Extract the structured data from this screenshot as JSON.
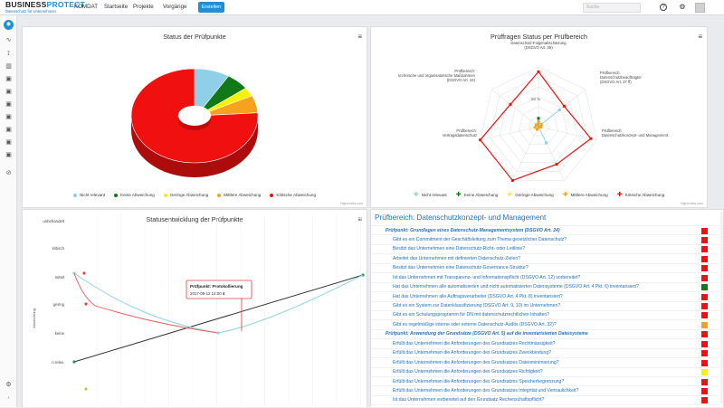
{
  "header": {
    "logo_main_a": "BUSINESS",
    "logo_main_b": "PROTECT",
    "logo_sub": "Datenschutz für Unternehmen",
    "nav": [
      "KOMDAT",
      "Startseite",
      "Projekte",
      "Vorgänge"
    ],
    "create_label": "Erstellen",
    "search_placeholder": "Suche",
    "help_icon": "?",
    "gear_icon": "⚙"
  },
  "sidebar": {
    "icons": [
      "home-icon",
      "activity-icon",
      "route-icon",
      "bar-chart-icon",
      "image-icon",
      "image-icon",
      "image-icon",
      "image-icon",
      "image-icon",
      "image-icon",
      "image-icon",
      "link-icon",
      "gear-icon",
      "chevron-icon"
    ]
  },
  "colors": {
    "nicht_relevant": "#8fcfe8",
    "keine": "#0f7a16",
    "geringe": "#f8f200",
    "mittlere": "#f7a21d",
    "kritische": "#f01010",
    "link": "#1e6fc0",
    "accent": "#1e90d6"
  },
  "legend_labels": [
    "Nicht relevant",
    "Keine Abweichung",
    "Geringe Abweichung",
    "Mittlere Abweichung",
    "Kritische Abweichung"
  ],
  "credits": "Highcharts.com",
  "chart_data": [
    {
      "type": "pie",
      "title": "Status der Prüfpunkte",
      "categories": [
        "Nicht relevant",
        "Keine Abweichung",
        "Geringe Abweichung",
        "Mittlere Abweichung",
        "Kritische Abweichung"
      ],
      "values": [
        9,
        6,
        3,
        6,
        76
      ],
      "colors": [
        "#8fcfe8",
        "#0f7a16",
        "#f8f200",
        "#f7a21d",
        "#f01010"
      ],
      "legend": "bottom"
    },
    {
      "type": "line",
      "subtype": "radar",
      "title": "Prüffragen Status per Prüfbereich",
      "categories": [
        "Prüfbereich: Datenschutz-Folgenabschätzung (DSGVO Art. 35)",
        "Prüfbereich: Datenschutzbeauftragter (DSGVO Art. 37 ff)",
        "Prüfbereich: Datenschutzkonzept- und Management",
        "Prüfbereich: Verarbeitung kritischer Daten (DSGVO Art. 8, 9, 10)",
        "Prüfbereich: Verfahrensverzeichnis (DSGVO Art. 30)",
        "Prüfbereich: Vertragsdatenschutz",
        "Prüfbereich: technische und organisatorische Maßnahmen (DSGVO Art. 24)"
      ],
      "axis_label": "50 %",
      "series": [
        {
          "name": "Nicht relevant",
          "values": [
            0,
            45,
            0,
            30,
            0,
            0,
            0
          ]
        },
        {
          "name": "Keine Abweichung",
          "values": [
            14,
            0,
            0,
            0,
            0,
            0,
            0
          ]
        },
        {
          "name": "Geringe Abweichung",
          "values": [
            0,
            0,
            0,
            0,
            0,
            0,
            0
          ]
        },
        {
          "name": "Mittlere Abweichung",
          "values": [
            8,
            6,
            4,
            0,
            5,
            6,
            5
          ]
        },
        {
          "name": "Kritische Abweichung",
          "values": [
            92,
            55,
            90,
            70,
            100,
            100,
            60
          ]
        }
      ],
      "legend": "bottom"
    },
    {
      "type": "line",
      "title": "Statusentwicklung der Prüfpunkte",
      "ylabel": "Abweichung",
      "categories": [
        "unbehandelt",
        "kritisch",
        "mittel",
        "gering",
        "keine",
        "n.relev."
      ],
      "tooltip": {
        "title": "Prüfpunkt: Protokollierung",
        "date": "2017-09-12 14:00",
        "value": "4"
      }
    }
  ],
  "audit": {
    "title": "Prüfbereich: Datenschutzkonzept- und Management",
    "rows": [
      {
        "kind": "sec",
        "text": "Prüfpunkt: Grundlagen eines Datenschutz-Managementsystem (DSGVO Art. 24)",
        "status": "kritische"
      },
      {
        "kind": "q",
        "text": "Gibt es ein Commitment der Geschäftsleitung zum Thema gesetzlicher Datenschutz?",
        "status": "kritische"
      },
      {
        "kind": "q",
        "text": "Besitzt das Unternehmen eine Datenschutz-Richt- oder Leitlinie?",
        "status": "kritische"
      },
      {
        "kind": "q",
        "text": "Arbeitet das Unternehmen mit definierten Datenschutz-Zielen?",
        "status": "kritische"
      },
      {
        "kind": "q",
        "text": "Besitzt das Unternehmen eine Datenschutz-Governance-Struktur?",
        "status": "kritische"
      },
      {
        "kind": "q",
        "text": "Ist das Unternehmen mit Transparenz- und Informationspflicht (DSGVO Art. 12) vorbereitet?",
        "status": "kritische"
      },
      {
        "kind": "q",
        "text": "Hat das Unternehmen alle automatisierten und nicht automatisierten Datensysteme (DSGVO Art. 4 Pkt. 6) inventarisiert?",
        "status": "keine"
      },
      {
        "kind": "q",
        "text": "Hat das Unternehmen alle Auftragsverarbeiter (DSGVO Art. 4 Pkt. 8) inventarisiert?",
        "status": "kritische"
      },
      {
        "kind": "q",
        "text": "Gibt es ein System zur Datenklassifizierung (DSGVO Art. 9, 10) im Unternehmen?",
        "status": "kritische"
      },
      {
        "kind": "q",
        "text": "Gibt es ein Schulungsprogramm für DN mit datenschutzrechtlichen Inhalten?",
        "status": "kritische"
      },
      {
        "kind": "q",
        "text": "Gibt es regelmäßige interne oder externe Datenschutz-Audits (DSGVO Art. 32)?",
        "status": "mittlere"
      },
      {
        "kind": "sec",
        "text": "Prüfpunkt: Anwendung der Grundsätze (DSGVO Art. 5) auf die inventarisierten Dateisysteme",
        "status": "kritische"
      },
      {
        "kind": "q",
        "text": "Erfüllt das Unternehmen die Anforderungen des Grundsatzes Rechtmässigkeit?",
        "status": "kritische"
      },
      {
        "kind": "q",
        "text": "Erfüllt das Unternehmen die Anforderungen des Grundsatzes Zweckbindung?",
        "status": "kritische"
      },
      {
        "kind": "q",
        "text": "Erfüllt das Unternehmen die Anforderungen des Grundsatzes Datenminimierung?",
        "status": "kritische"
      },
      {
        "kind": "q",
        "text": "Erfüllt das Unternehmen die Anforderungen des Grundsatzes Richtigkeit?",
        "status": "geringe"
      },
      {
        "kind": "q",
        "text": "Erfüllt das Unternehmen die Anforderungen des Grundsatzes Speicherbegrenzung?",
        "status": "kritische"
      },
      {
        "kind": "q",
        "text": "Erfüllt das Unternehmen die Anforderungen des Grundsatzes Integrität und Vertraulichkeit?",
        "status": "kritische"
      },
      {
        "kind": "q",
        "text": "Ist das Unternehmen vorbereitet auf den Grundsatz Rechenschaftspflicht?",
        "status": "kritische"
      },
      {
        "kind": "sec",
        "text": "Prüfpunkt: Informationspflicht und Betroffenenrechte",
        "status": "kritische"
      }
    ]
  }
}
